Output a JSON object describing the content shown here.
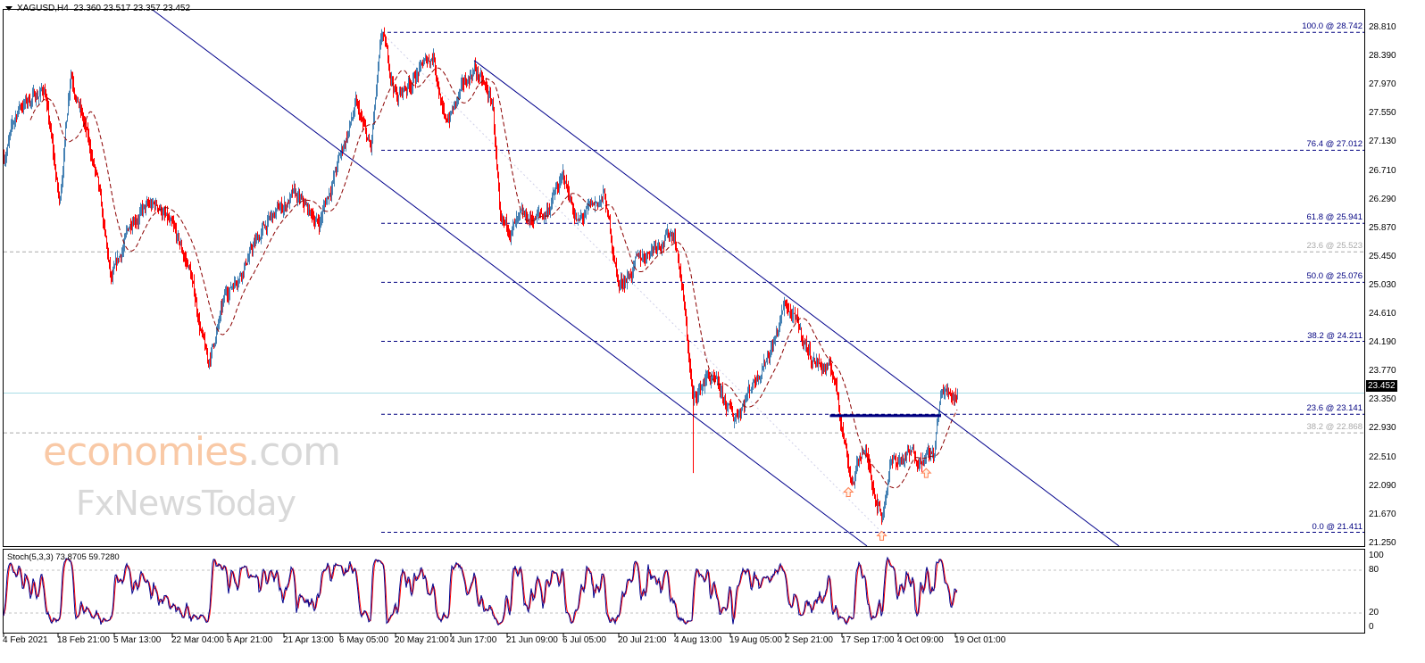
{
  "header": {
    "symbol": "XAGUSD,H4",
    "ohlc": "23.360 23.517 23.357 23.452"
  },
  "watermark": {
    "line1": "economies",
    "line1_suffix": ".com",
    "line2": "FxNewsToday"
  },
  "current_price": "23.452",
  "colors": {
    "bull_bar": "#4682b4",
    "bear_bar": "#ff0000",
    "ma": "#8b0000",
    "channel": "#00008b",
    "fib": "#000080",
    "fib_secondary": "#a9a9a9",
    "current_line": "#a8dde6",
    "stoch_main": "#00008b",
    "stoch_signal": "#ff0000",
    "arrow": "#ff7f50"
  },
  "chart_data": {
    "type": "candlestick-bar",
    "symbol": "XAGUSD",
    "timeframe": "H4",
    "y_axis": {
      "ticks": [
        "28.810",
        "28.390",
        "27.970",
        "27.550",
        "27.130",
        "26.710",
        "26.290",
        "25.870",
        "25.450",
        "25.030",
        "24.610",
        "24.190",
        "23.770",
        "23.350",
        "22.930",
        "22.510",
        "22.090",
        "21.670",
        "21.250"
      ],
      "range": [
        21.25,
        28.81
      ]
    },
    "x_axis": {
      "ticks": [
        "4 Feb 2021",
        "18 Feb 21:00",
        "5 Mar 13:00",
        "22 Mar 04:00",
        "6 Apr 21:00",
        "21 Apr 13:00",
        "6 May 05:00",
        "20 May 21:00",
        "4 Jun 17:00",
        "21 Jun 09:00",
        "6 Jul 05:00",
        "20 Jul 21:00",
        "4 Aug 13:00",
        "19 Aug 05:00",
        "2 Sep 21:00",
        "17 Sep 17:00",
        "4 Oct 09:00",
        "19 Oct 01:00"
      ]
    },
    "price_path": [
      [
        "2021-02-03",
        26.73
      ],
      [
        "2021-02-08",
        27.65
      ],
      [
        "2021-02-15",
        27.91
      ],
      [
        "2021-02-19",
        26.2
      ],
      [
        "2021-02-22",
        28.23
      ],
      [
        "2021-03-01",
        26.6
      ],
      [
        "2021-03-05",
        25.03
      ],
      [
        "2021-03-11",
        26.08
      ],
      [
        "2021-03-18",
        26.2
      ],
      [
        "2021-03-26",
        25.29
      ],
      [
        "2021-03-31",
        23.85
      ],
      [
        "2021-04-05",
        24.9
      ],
      [
        "2021-04-16",
        25.94
      ],
      [
        "2021-04-23",
        26.34
      ],
      [
        "2021-04-30",
        25.94
      ],
      [
        "2021-05-10",
        27.65
      ],
      [
        "2021-05-14",
        26.99
      ],
      [
        "2021-05-17",
        28.69
      ],
      [
        "2021-05-21",
        27.78
      ],
      [
        "2021-05-31",
        28.43
      ],
      [
        "2021-06-03",
        27.38
      ],
      [
        "2021-06-11",
        28.23
      ],
      [
        "2021-06-16",
        27.65
      ],
      [
        "2021-06-18",
        25.81
      ],
      [
        "2021-06-30",
        26.08
      ],
      [
        "2021-07-05",
        26.6
      ],
      [
        "2021-07-09",
        25.94
      ],
      [
        "2021-07-16",
        26.34
      ],
      [
        "2021-07-20",
        25.03
      ],
      [
        "2021-07-30",
        25.68
      ],
      [
        "2021-08-04",
        25.81
      ],
      [
        "2021-08-06",
        25.03
      ],
      [
        "2021-08-09",
        23.33
      ],
      [
        "2021-08-13",
        23.72
      ],
      [
        "2021-08-20",
        23.07
      ],
      [
        "2021-08-31",
        24.24
      ],
      [
        "2021-09-03",
        24.77
      ],
      [
        "2021-09-10",
        23.98
      ],
      [
        "2021-09-16",
        23.72
      ],
      [
        "2021-09-20",
        22.41
      ],
      [
        "2021-09-21",
        22.15
      ],
      [
        "2021-09-24",
        22.67
      ],
      [
        "2021-09-29",
        21.63
      ],
      [
        "2021-10-01",
        22.41
      ],
      [
        "2021-10-07",
        22.54
      ],
      [
        "2021-10-13",
        22.54
      ],
      [
        "2021-10-15",
        23.46
      ],
      [
        "2021-10-19",
        23.452
      ]
    ],
    "spike_low": [
      "2021-08-09",
      22.28
    ],
    "last_bar": {
      "open": 23.36,
      "high": 23.517,
      "low": 23.357,
      "close": 23.452
    },
    "moving_average": {
      "style": "dashed"
    },
    "fibonacci_levels": [
      {
        "label": "100.0 @ 28.742",
        "price": 28.742,
        "set": "primary"
      },
      {
        "label": "76.4 @ 27.012",
        "price": 27.012,
        "set": "primary"
      },
      {
        "label": "61.8 @ 25.941",
        "price": 25.941,
        "set": "primary"
      },
      {
        "label": "23.6 @ 25.523",
        "price": 25.523,
        "set": "secondary"
      },
      {
        "label": "50.0 @ 25.076",
        "price": 25.076,
        "set": "primary"
      },
      {
        "label": "38.2 @ 24.211",
        "price": 24.211,
        "set": "primary"
      },
      {
        "label": "23.6 @ 23.141",
        "price": 23.141,
        "set": "primary"
      },
      {
        "label": "38.2 @ 22.868",
        "price": 22.868,
        "set": "secondary"
      },
      {
        "label": "0.0 @ 21.411",
        "price": 21.411,
        "set": "primary"
      }
    ],
    "fib_trendline": [
      [
        "2021-05-17",
        28.742
      ],
      [
        "2021-09-29",
        21.411
      ]
    ],
    "channel_upper": [
      [
        "2021-06-11",
        28.33
      ],
      [
        "2021-12-02",
        21.21
      ]
    ],
    "channel_lower": [
      [
        "2021-03-16",
        29.08
      ],
      [
        "2021-09-25",
        21.21
      ]
    ],
    "resistance_line": [
      [
        "2021-09-15",
        23.12
      ],
      [
        "2021-10-15",
        23.12
      ]
    ],
    "arrows": [
      [
        "2021-09-20",
        22.0
      ],
      [
        "2021-09-29",
        21.36
      ],
      [
        "2021-10-11",
        22.28
      ]
    ],
    "stochastic": {
      "label": "Stoch(5,3,3) 73.8705 59.7280",
      "params": [
        5,
        3,
        3
      ],
      "main": 73.8705,
      "signal": 59.728,
      "levels": [
        80,
        20
      ],
      "axis_ticks": [
        "100",
        "80",
        "20",
        "0"
      ]
    }
  }
}
